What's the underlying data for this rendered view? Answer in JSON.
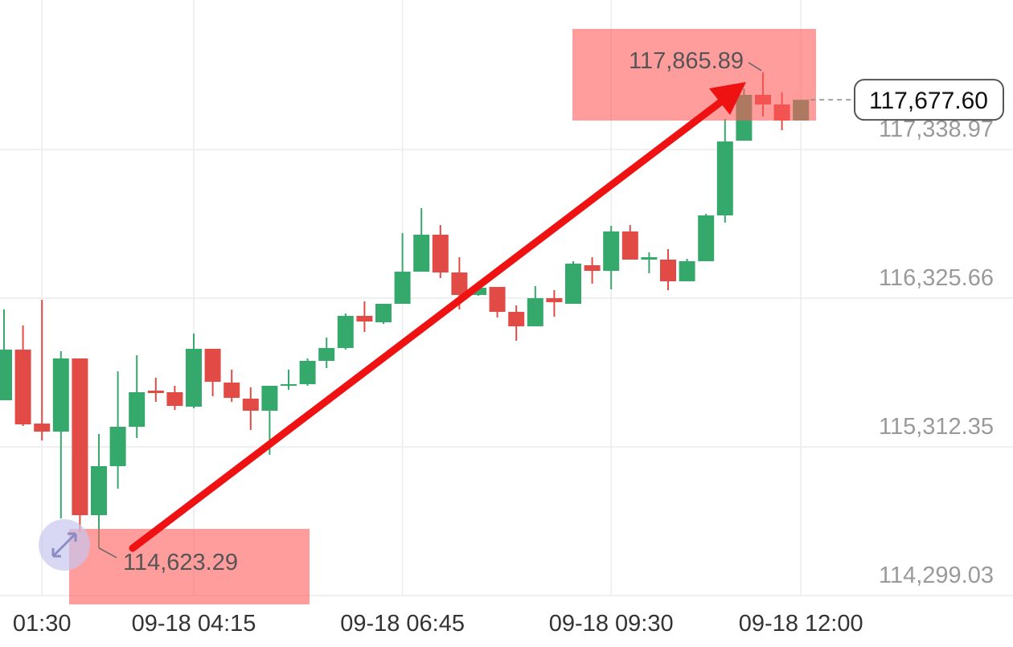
{
  "chart_data": {
    "type": "candlestick",
    "categories": [
      null,
      null,
      "01:30",
      null,
      null,
      null,
      null,
      null,
      null,
      null,
      "09-18 04:15",
      null,
      null,
      null,
      null,
      null,
      null,
      null,
      null,
      null,
      null,
      "09-18 06:45",
      null,
      null,
      null,
      null,
      null,
      null,
      null,
      null,
      null,
      null,
      "09-18 09:30",
      null,
      null,
      null,
      null,
      null,
      null,
      null,
      null,
      null,
      "09-18 12:00"
    ],
    "open": [
      115630.0,
      115975.1,
      115471.2,
      115416.4,
      115914.9,
      114846.8,
      115180.9,
      115449.3,
      115695.8,
      115684.8,
      115586.2,
      115980.6,
      115750.5,
      115641.0,
      115558.8,
      115728.6,
      115739.6,
      115898.4,
      115986.1,
      116205.2,
      116161.3,
      116287.3,
      116506.4,
      116758.4,
      116500.9,
      116347.6,
      116402.3,
      116232.5,
      116134.0,
      116325.7,
      116287.3,
      116550.2,
      116511.9,
      116780.3,
      116588.6,
      116588.6,
      116440.7,
      116577.6,
      116889.8,
      117399.2,
      117711.4,
      117645.7,
      117536.2
    ],
    "high": [
      116249.0,
      116139.4,
      116314.7,
      115964.2,
      115914.9,
      115400.0,
      115827.2,
      115936.8,
      115783.4,
      115728.6,
      116084.7,
      115980.6,
      115838.2,
      115717.7,
      115728.6,
      115838.2,
      115914.9,
      116057.3,
      116221.6,
      116303.7,
      116287.3,
      116769.3,
      116939.1,
      116824.1,
      116605.0,
      116440.7,
      116402.3,
      116276.4,
      116407.8,
      116380.4,
      116577.6,
      116605.0,
      116818.6,
      116824.1,
      116637.9,
      116659.8,
      116594.1,
      116900.8,
      117547.1,
      117755.3,
      117865.89,
      117727.9,
      117677.6
    ],
    "low": [
      115630.0,
      115454.8,
      115356.2,
      114824.9,
      114731.7,
      114623.29,
      115027.5,
      115372.6,
      115619.1,
      115564.3,
      115575.3,
      115657.4,
      115619.1,
      115427.4,
      115257.6,
      115701.2,
      115728.6,
      115849.1,
      115975.1,
      116095.6,
      116150.4,
      116287.3,
      116506.4,
      116462.6,
      116249.0,
      116342.1,
      116194.2,
      116035.4,
      116134.0,
      116199.7,
      116287.3,
      116424.3,
      116385.9,
      116588.6,
      116495.5,
      116380.4,
      116440.7,
      116577.6,
      116840.5,
      117399.2,
      117563.6,
      117470.4,
      117536.2
    ],
    "close": [
      115975.1,
      115465.7,
      115416.4,
      115914.9,
      114846.8,
      115180.9,
      115449.3,
      115684.8,
      115679.3,
      115591.7,
      115980.6,
      115756.0,
      115646.5,
      115558.8,
      115728.6,
      115739.6,
      115898.4,
      115986.1,
      116205.2,
      116166.8,
      116287.3,
      116506.4,
      116758.4,
      116500.9,
      116347.6,
      116396.9,
      116232.5,
      116134.0,
      116325.7,
      116298.3,
      116561.2,
      116511.9,
      116780.3,
      116588.6,
      116605.0,
      116440.7,
      116577.6,
      116889.8,
      117393.8,
      117711.4,
      117645.7,
      117536.2,
      117677.6
    ],
    "up_color": "#35a96c",
    "down_color": "#e24b45",
    "ylim": [
      114299.03,
      118357.77
    ],
    "yticks": [
      {
        "value": 114299.03,
        "label": "114,299.03"
      },
      {
        "value": 115312.35,
        "label": "115,312.35"
      },
      {
        "value": 116325.66,
        "label": "116,325.66"
      },
      {
        "value": 117338.97,
        "label": "117,338.97"
      }
    ],
    "grid": true,
    "max_label": "117,865.89",
    "min_label": "114,623.29",
    "last_price_label": "117,677.60"
  }
}
